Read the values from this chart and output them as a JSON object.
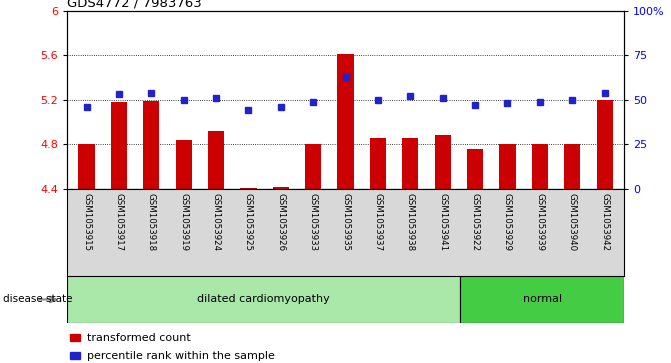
{
  "title": "GDS4772 / 7983763",
  "samples": [
    "GSM1053915",
    "GSM1053917",
    "GSM1053918",
    "GSM1053919",
    "GSM1053924",
    "GSM1053925",
    "GSM1053926",
    "GSM1053933",
    "GSM1053935",
    "GSM1053937",
    "GSM1053938",
    "GSM1053941",
    "GSM1053922",
    "GSM1053929",
    "GSM1053939",
    "GSM1053940",
    "GSM1053942"
  ],
  "bar_values": [
    4.8,
    5.18,
    5.19,
    4.84,
    4.92,
    4.41,
    4.42,
    4.8,
    5.61,
    4.86,
    4.86,
    4.88,
    4.76,
    4.8,
    4.8,
    4.8,
    5.2
  ],
  "dot_values": [
    46,
    53,
    54,
    50,
    51,
    44,
    46,
    49,
    63,
    50,
    52,
    51,
    47,
    48,
    49,
    50,
    54
  ],
  "ylim_left": [
    4.4,
    6.0
  ],
  "ylim_right": [
    0,
    100
  ],
  "yticks_left": [
    4.4,
    4.8,
    5.2,
    5.6,
    6.0
  ],
  "ytick_labels_left": [
    "4.4",
    "4.8",
    "5.2",
    "5.6",
    "6"
  ],
  "yticks_right": [
    0,
    25,
    50,
    75,
    100
  ],
  "ytick_labels_right": [
    "0",
    "25",
    "50",
    "75",
    "100%"
  ],
  "bar_color": "#cc0000",
  "dot_color": "#2222cc",
  "disease_groups": [
    {
      "label": "dilated cardiomyopathy",
      "start": 0,
      "end": 12,
      "color": "#aae8aa"
    },
    {
      "label": "normal",
      "start": 12,
      "end": 17,
      "color": "#44cc44"
    }
  ],
  "legend_bar_label": "transformed count",
  "legend_dot_label": "percentile rank within the sample",
  "disease_state_label": "disease state",
  "bg_color": "#d8d8d8",
  "plot_bg": "#ffffff"
}
